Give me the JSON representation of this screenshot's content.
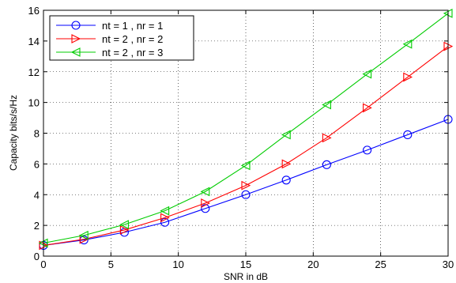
{
  "chart_data": {
    "type": "line",
    "xlabel": "SNR in dB",
    "ylabel": "Capacity bits/s/Hz",
    "xlim": [
      0,
      30
    ],
    "ylim": [
      0,
      16
    ],
    "xticks": [
      "0",
      "5",
      "10",
      "15",
      "20",
      "25",
      "30"
    ],
    "yticks": [
      "0",
      "2",
      "4",
      "6",
      "8",
      "10",
      "12",
      "14",
      "16"
    ],
    "grid": true,
    "legend_position": "top-left",
    "x": [
      0,
      3,
      6,
      9,
      12,
      15,
      18,
      21,
      24,
      27,
      30
    ],
    "series": [
      {
        "name": "nt = 1 , nr = 1",
        "color": "#0000ff",
        "marker": "circle",
        "values": [
          0.7,
          1.05,
          1.55,
          2.2,
          3.1,
          4.0,
          4.95,
          5.95,
          6.9,
          7.9,
          8.9
        ]
      },
      {
        "name": "nt = 2 , nr = 2",
        "color": "#ff0000",
        "marker": "triangle-right",
        "values": [
          0.7,
          1.1,
          1.7,
          2.5,
          3.45,
          4.6,
          6.0,
          7.7,
          9.65,
          11.65,
          13.65
        ]
      },
      {
        "name": "nt = 2 , nr = 3",
        "color": "#00cc00",
        "marker": "triangle-left",
        "values": [
          0.85,
          1.35,
          2.05,
          2.95,
          4.2,
          5.9,
          7.9,
          9.85,
          11.85,
          13.8,
          15.8
        ]
      }
    ]
  }
}
